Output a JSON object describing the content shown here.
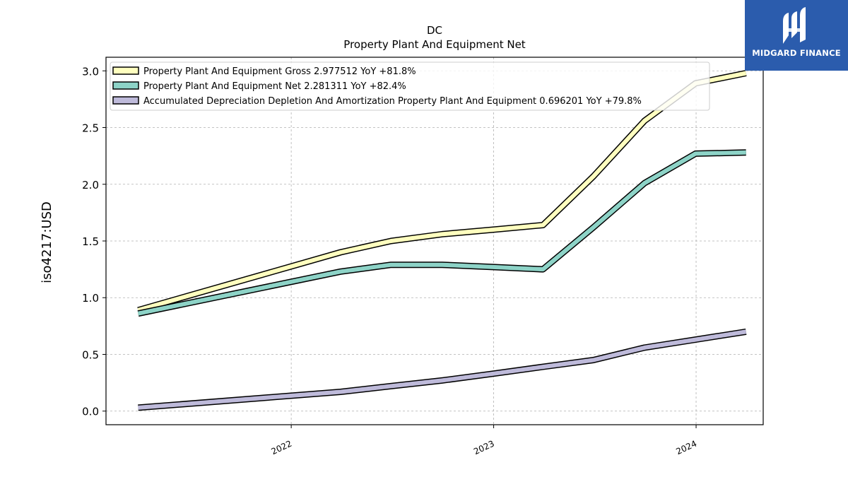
{
  "brand": {
    "name": "MIDGARD FINANCE",
    "color": "#2b5cad"
  },
  "chart_data": {
    "type": "line",
    "title": "DC",
    "subtitle": "Property Plant And Equipment Net",
    "ylabel": "iso4217:USD",
    "xlabel": "",
    "ylim": [
      -0.12,
      3.12
    ],
    "yticks": [
      0.0,
      0.5,
      1.0,
      1.5,
      2.0,
      2.5,
      3.0
    ],
    "ytick_labels": [
      "0.0",
      "0.5",
      "1.0",
      "1.5",
      "2.0",
      "2.5",
      "3.0"
    ],
    "xticks": [
      "2022-01-01",
      "2023-01-01",
      "2024-01-01"
    ],
    "xtick_labels": [
      "2022",
      "2023",
      "2024"
    ],
    "xlim": [
      "2021-02-01",
      "2024-05-01"
    ],
    "grid": true,
    "legend_position": "top-left",
    "series": [
      {
        "name": "Property Plant And Equipment Gross  2.977512 YoY +81.8%",
        "color": "#ffffbf",
        "x": [
          "2021-03-31",
          "2022-03-31",
          "2022-06-30",
          "2022-09-30",
          "2022-12-31",
          "2023-03-31",
          "2023-06-30",
          "2023-09-30",
          "2023-12-31",
          "2024-03-31"
        ],
        "values": [
          0.89,
          1.4,
          1.5,
          1.56,
          1.6,
          1.64,
          2.07,
          2.56,
          2.89,
          2.98
        ]
      },
      {
        "name": "Property Plant And Equipment Net  2.281311 YoY +82.4%",
        "color": "#8dd3c7",
        "x": [
          "2021-03-31",
          "2022-03-31",
          "2022-06-30",
          "2022-09-30",
          "2022-12-31",
          "2023-03-31",
          "2023-06-30",
          "2023-09-30",
          "2023-12-31",
          "2024-03-31"
        ],
        "values": [
          0.86,
          1.23,
          1.29,
          1.29,
          1.27,
          1.25,
          1.62,
          2.01,
          2.27,
          2.28
        ]
      },
      {
        "name": "Accumulated Depreciation Depletion And Amortization Property Plant And Equipment  0.696201 YoY +79.8%",
        "color": "#bebada",
        "x": [
          "2021-03-31",
          "2022-03-31",
          "2022-06-30",
          "2022-09-30",
          "2022-12-31",
          "2023-03-31",
          "2023-06-30",
          "2023-09-30",
          "2023-12-31",
          "2024-03-31"
        ],
        "values": [
          0.03,
          0.17,
          0.22,
          0.27,
          0.33,
          0.39,
          0.45,
          0.56,
          0.63,
          0.7
        ]
      }
    ]
  }
}
